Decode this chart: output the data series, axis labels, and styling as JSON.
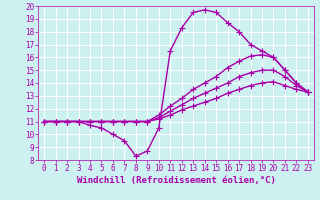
{
  "title": "",
  "xlabel": "Windchill (Refroidissement éolien,°C)",
  "ylabel": "",
  "xlim": [
    -0.5,
    23.5
  ],
  "ylim": [
    8,
    20
  ],
  "yticks": [
    8,
    9,
    10,
    11,
    12,
    13,
    14,
    15,
    16,
    17,
    18,
    19,
    20
  ],
  "xticks": [
    0,
    1,
    2,
    3,
    4,
    5,
    6,
    7,
    8,
    9,
    10,
    11,
    12,
    13,
    14,
    15,
    16,
    17,
    18,
    19,
    20,
    21,
    22,
    23
  ],
  "background_color": "#cdf0f0",
  "grid_color": "#ffffff",
  "line_color": "#aa00aa",
  "line_width": 1.0,
  "marker": "+",
  "marker_size": 4,
  "lines": [
    {
      "x": [
        0,
        1,
        2,
        3,
        4,
        5,
        6,
        7,
        8,
        9,
        10,
        11,
        12,
        13,
        14,
        15,
        16,
        17,
        18,
        19,
        20,
        21,
        22,
        23
      ],
      "y": [
        11,
        11,
        11,
        11,
        10.7,
        10.5,
        10,
        9.5,
        8.3,
        8.7,
        10.5,
        16.5,
        18.3,
        19.5,
        19.7,
        19.5,
        18.7,
        18,
        17,
        16.5,
        16,
        15,
        14,
        13.3
      ]
    },
    {
      "x": [
        0,
        1,
        2,
        3,
        4,
        5,
        6,
        7,
        8,
        9,
        10,
        11,
        12,
        13,
        14,
        15,
        16,
        17,
        18,
        19,
        20,
        21,
        22,
        23
      ],
      "y": [
        11,
        11,
        11,
        11,
        11,
        11,
        11,
        11,
        11,
        11,
        11.5,
        12.2,
        12.8,
        13.5,
        14.0,
        14.5,
        15.2,
        15.7,
        16.1,
        16.2,
        16.0,
        15.0,
        14.0,
        13.3
      ]
    },
    {
      "x": [
        0,
        1,
        2,
        3,
        4,
        5,
        6,
        7,
        8,
        9,
        10,
        11,
        12,
        13,
        14,
        15,
        16,
        17,
        18,
        19,
        20,
        21,
        22,
        23
      ],
      "y": [
        11,
        11,
        11,
        11,
        11,
        11,
        11,
        11,
        11,
        11,
        11.3,
        11.8,
        12.3,
        12.8,
        13.2,
        13.6,
        14.0,
        14.5,
        14.8,
        15.0,
        15.0,
        14.5,
        13.8,
        13.3
      ]
    },
    {
      "x": [
        0,
        1,
        2,
        3,
        4,
        5,
        6,
        7,
        8,
        9,
        10,
        11,
        12,
        13,
        14,
        15,
        16,
        17,
        18,
        19,
        20,
        21,
        22,
        23
      ],
      "y": [
        11,
        11,
        11,
        11,
        11,
        11,
        11,
        11,
        11,
        11,
        11.2,
        11.5,
        11.9,
        12.2,
        12.5,
        12.8,
        13.2,
        13.5,
        13.8,
        14.0,
        14.1,
        13.8,
        13.5,
        13.3
      ]
    }
  ],
  "tick_fontsize": 5.5,
  "xlabel_fontsize": 6.5
}
